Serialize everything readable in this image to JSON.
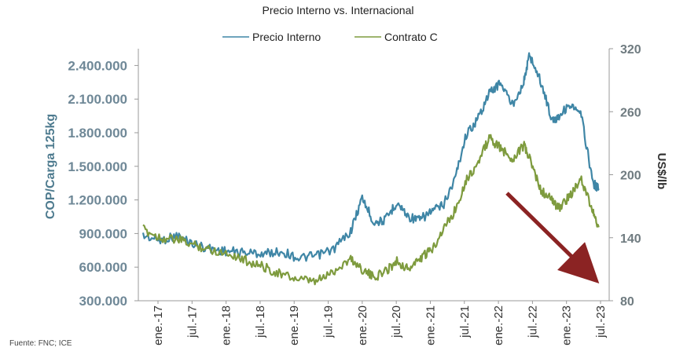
{
  "chart_data": {
    "type": "line",
    "title": "Precio Interno vs. Internacional",
    "source": "Fuente: FNC; ICE",
    "ylabel_left": "COP/Carga 125kg",
    "ylabel_right": "US$/lb",
    "ylim_left": [
      300000,
      2550000
    ],
    "ylim_right": [
      80,
      320
    ],
    "yticks_left": [
      "2.400.000",
      "2.100.000",
      "1.800.000",
      "1.500.000",
      "1.200.000",
      "900.000",
      "600.000",
      "300.000"
    ],
    "yticks_left_values": [
      2400000,
      2100000,
      1800000,
      1500000,
      1200000,
      900000,
      600000,
      300000
    ],
    "yticks_right": [
      "320",
      "260",
      "200",
      "140",
      "80"
    ],
    "yticks_right_values": [
      320,
      260,
      200,
      140,
      80
    ],
    "xticks": [
      "ene.-17",
      "jul.-17",
      "ene.-18",
      "jul.-18",
      "ene.-19",
      "jul.-19",
      "ene.-20",
      "jul.-20",
      "ene.-21",
      "jul.-21",
      "ene.-22",
      "jul.-22",
      "ene.-23",
      "jul.-23"
    ],
    "legend": {
      "position": "top",
      "entries": [
        "Precio Interno",
        "Contrato C"
      ]
    },
    "grid": false,
    "annotation": {
      "type": "arrow",
      "direction": "down-right",
      "color": "#8b2323"
    },
    "colors": {
      "Precio Interno": "#3f86a6",
      "Contrato C": "#7e9b3e",
      "arrow": "#8b2323"
    },
    "series": [
      {
        "name": "Precio Interno",
        "axis": "left",
        "x": [
          "2017-01",
          "2017-04",
          "2017-07",
          "2017-10",
          "2018-01",
          "2018-04",
          "2018-07",
          "2018-10",
          "2019-01",
          "2019-04",
          "2019-07",
          "2019-10",
          "2020-01",
          "2020-03",
          "2020-05",
          "2020-07",
          "2020-09",
          "2020-11",
          "2021-01",
          "2021-03",
          "2021-05",
          "2021-07",
          "2021-09",
          "2021-11",
          "2022-01",
          "2022-03",
          "2022-05",
          "2022-07",
          "2022-08",
          "2022-10",
          "2022-12",
          "2023-01",
          "2023-03",
          "2023-05",
          "2023-07",
          "2023-08"
        ],
        "values": [
          880000,
          840000,
          880000,
          800000,
          760000,
          740000,
          730000,
          720000,
          740000,
          680000,
          700000,
          760000,
          920000,
          1220000,
          1000000,
          1020000,
          1180000,
          1050000,
          1020000,
          1100000,
          1150000,
          1380000,
          1780000,
          1920000,
          2150000,
          2250000,
          2050000,
          2250000,
          2500000,
          2250000,
          1900000,
          1950000,
          2050000,
          1950000,
          1350000,
          1300000
        ]
      },
      {
        "name": "Contrato C",
        "axis": "right",
        "x": [
          "2017-01",
          "2017-04",
          "2017-07",
          "2017-10",
          "2018-01",
          "2018-04",
          "2018-07",
          "2018-10",
          "2019-01",
          "2019-04",
          "2019-07",
          "2019-10",
          "2020-01",
          "2020-03",
          "2020-05",
          "2020-07",
          "2020-09",
          "2020-11",
          "2021-01",
          "2021-03",
          "2021-05",
          "2021-07",
          "2021-09",
          "2021-11",
          "2022-01",
          "2022-03",
          "2022-05",
          "2022-07",
          "2022-08",
          "2022-10",
          "2022-12",
          "2023-01",
          "2023-03",
          "2023-05",
          "2023-07",
          "2023-08"
        ],
        "values": [
          148,
          140,
          138,
          133,
          128,
          125,
          118,
          112,
          105,
          100,
          98,
          108,
          120,
          110,
          102,
          108,
          118,
          110,
          120,
          128,
          148,
          165,
          195,
          210,
          235,
          225,
          215,
          228,
          215,
          185,
          175,
          168,
          180,
          195,
          165,
          150
        ]
      }
    ]
  }
}
